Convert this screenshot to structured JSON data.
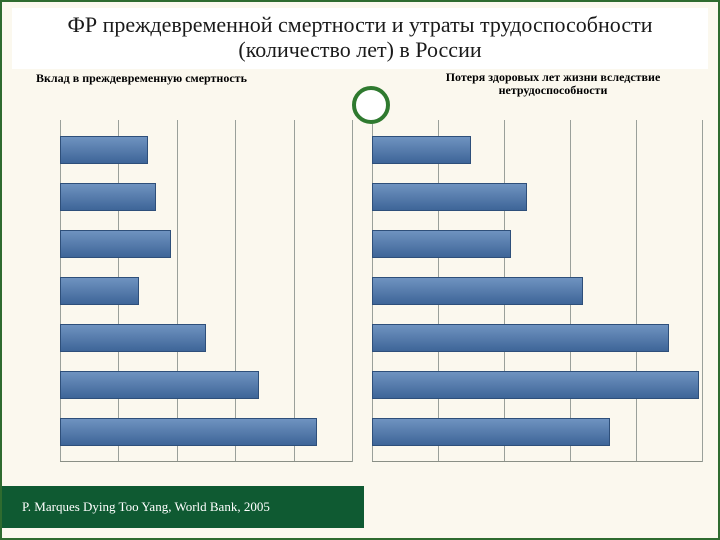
{
  "title": "ФР преждевременной смертности и утраты трудоспособности (количество лет) в России",
  "title_fontsize": 22,
  "title_color": "#1a1a1a",
  "subtitle_left": "Вклад в преждевременную смертность",
  "subtitle_right": "Потеря здоровых лет жизни вследствие нетрудоспособности",
  "subtitle_fontsize": 12,
  "background_color": "#fbf8ee",
  "border_color": "#2f6b2f",
  "grid_color": "#9aa09a",
  "baseline_color": "#8a8f86",
  "bar_fill_top": "#6f93c0",
  "bar_fill_bottom": "#3e6598",
  "bar_border": "#2e4f7a",
  "accent_circle_border": "#2f7a2f",
  "footer_bg": "#0f5a32",
  "footer_color": "#ffffff",
  "footer_text": "P. Marques Dying Too Yang, World Bank, 2005",
  "footer_fontsize": 13,
  "left_chart": {
    "type": "bar-horizontal",
    "x_max": 100,
    "grid_count": 5,
    "values": [
      30,
      33,
      38,
      27,
      50,
      68,
      88
    ]
  },
  "right_chart": {
    "type": "bar-horizontal",
    "x_max": 100,
    "grid_count": 5,
    "values": [
      30,
      47,
      42,
      64,
      90,
      99,
      72
    ]
  }
}
